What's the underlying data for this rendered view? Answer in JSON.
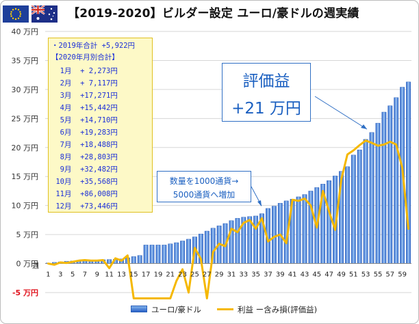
{
  "page": {
    "title": "【2019-2020】ビルダー設定 ユーロ/豪ドルの週実績"
  },
  "flags": {
    "left": "eu-flag-icon",
    "right": "au-flag-icon"
  },
  "summary": {
    "year_total": "・2019年合計 +5,922円",
    "header": "【2020年月別合計】",
    "months": [
      "  1月  + 2,273円",
      "  2月  + 7,117円",
      "  3月  +17,271円",
      "  4月  +15,442円",
      "  5月  +14,710円",
      "  6月  +19,283円",
      "  7月  +18,488円",
      "  8月  +28,803円",
      "  9月  +32,482円",
      " 10月  +35,568円",
      " 11月  +86,008円",
      " 12月  +73,446円"
    ]
  },
  "annotations": {
    "unrealized_label": "評価益",
    "unrealized_value": "+21 万円",
    "note_line1": "数量を1000通貨→",
    "note_line2": "5000通貨へ増加"
  },
  "chart_data": {
    "type": "bar",
    "title": "【2019-2020】ビルダー設定 ユーロ/豪ドルの週実績",
    "xlabel": "",
    "ylabel": "",
    "ylim": [
      -50000,
      400000
    ],
    "yticks": [
      "-5 万円",
      "0 万円",
      "5 万円",
      "10 万円",
      "15 万円",
      "20 万円",
      "25 万円",
      "30 万円",
      "35 万円",
      "40 万円"
    ],
    "ytick_values": [
      -50000,
      0,
      50000,
      100000,
      150000,
      200000,
      250000,
      300000,
      350000,
      400000
    ],
    "x_first_label": "週",
    "x": [
      1,
      2,
      3,
      4,
      5,
      6,
      7,
      8,
      9,
      10,
      11,
      12,
      13,
      14,
      15,
      16,
      17,
      18,
      19,
      20,
      21,
      22,
      23,
      24,
      25,
      26,
      27,
      28,
      29,
      30,
      31,
      32,
      33,
      34,
      35,
      36,
      37,
      38,
      39,
      40,
      41,
      42,
      43,
      44,
      45,
      46,
      47,
      48,
      49,
      50,
      51,
      52,
      53,
      54,
      55,
      56,
      57,
      58,
      59,
      60
    ],
    "xticks": [
      1,
      3,
      5,
      7,
      9,
      11,
      13,
      15,
      17,
      19,
      21,
      23,
      25,
      27,
      29,
      31,
      33,
      35,
      37,
      39,
      41,
      43,
      45,
      47,
      49,
      51,
      53,
      55,
      57,
      59
    ],
    "grid": true,
    "legend_position": "bottom",
    "series": [
      {
        "name": "ユーロ/豪ドル",
        "kind": "bar",
        "color": "#3a72d0",
        "values": [
          1000,
          2000,
          3000,
          4000,
          4500,
          5000,
          5500,
          6000,
          6300,
          6600,
          7000,
          7500,
          8000,
          10000,
          12000,
          14000,
          32000,
          32000,
          32000,
          32000,
          34000,
          36000,
          39000,
          42000,
          46000,
          51000,
          56000,
          61000,
          65000,
          69000,
          74000,
          78000,
          80000,
          81000,
          82000,
          86000,
          95000,
          99000,
          104000,
          108000,
          111000,
          115000,
          119000,
          125000,
          131000,
          137000,
          143000,
          151000,
          159000,
          167000,
          187000,
          196000,
          214000,
          226000,
          242000,
          261000,
          272000,
          286000,
          304000,
          313000
        ]
      },
      {
        "name": "利益 ー含み損(評価益)",
        "kind": "line",
        "color": "#f5b800",
        "values": [
          0,
          -2000,
          2000,
          1000,
          3000,
          5000,
          6000,
          5000,
          5000,
          6000,
          -8000,
          9000,
          5000,
          14000,
          -60000,
          -60000,
          -60000,
          -60000,
          -60000,
          -60000,
          -60000,
          -30000,
          -10000,
          -50000,
          27000,
          8000,
          -60000,
          20000,
          34000,
          30000,
          60000,
          54000,
          70000,
          75000,
          60000,
          78000,
          38000,
          46000,
          50000,
          35000,
          110000,
          108000,
          112000,
          100000,
          62000,
          125000,
          90000,
          58000,
          145000,
          188000,
          195000,
          204000,
          212000,
          208000,
          203000,
          205000,
          210000,
          205000,
          165000,
          60000
        ]
      }
    ]
  },
  "legend": {
    "bar_label": "ユーロ/豪ドル",
    "line_label": "利益 ー含み損(評価益)"
  }
}
